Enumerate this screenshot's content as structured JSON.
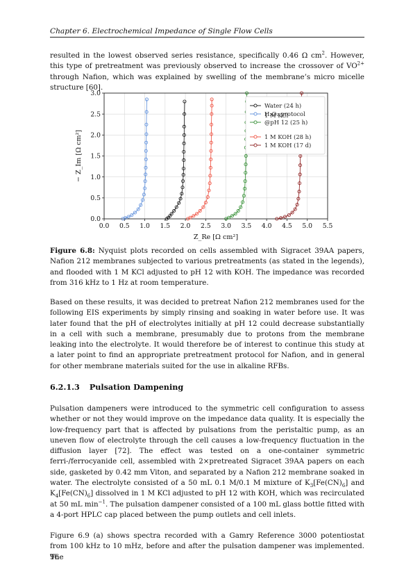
{
  "header": {
    "chapter": "Chapter 6. Electrochemical Impedance of Single Flow Cells"
  },
  "para1": {
    "a": "resulted in the lowest observed series resistance, specifically 0.46 Ω cm",
    "b": ". However, this type of pretreatment was previously observed to increase the crossover of VO",
    "c": " through Nafion, which was explained by swelling of the membrane’s micro micelle structure [60].",
    "sup_a": "2",
    "sup_b": "2+"
  },
  "figure": {
    "label": "Figure 6.8:",
    "caption": "Nyquist plots recorded on cells assembled with Sigracet 39AA papers, Nafion 212 membranes subjected to various pretreatments (as stated in the legends), and flooded with 1 M KCl adjusted to pH 12 with KOH. The impedance was recorded from 316 kHz to 1 Hz at room temperature."
  },
  "chart_data": {
    "type": "scatter",
    "title": "",
    "xlabel": "Z_Re [Ω cm²]",
    "ylabel": "− Z_Im [Ω cm²]",
    "xlim": [
      0.0,
      5.5
    ],
    "ylim": [
      0.0,
      3.0
    ],
    "x_ticks": [
      "0.0",
      "0.5",
      "1.0",
      "1.5",
      "2.0",
      "2.5",
      "3.0",
      "3.5",
      "4.0",
      "4.5",
      "5.0",
      "5.5"
    ],
    "y_ticks": [
      "0.0",
      "0.5",
      "1.0",
      "1.5",
      "2.0",
      "2.5",
      "3.0"
    ],
    "grid": true,
    "legend_position": "top-right",
    "series": [
      {
        "name": "Water (24 h)",
        "color": "#111111",
        "r": 1.54,
        "x": [
          1.54,
          1.58,
          1.62,
          1.66,
          1.72,
          1.78,
          1.84,
          1.88,
          1.91,
          1.93,
          1.94,
          1.95,
          1.955,
          1.96,
          1.96,
          1.965,
          1.97,
          1.97,
          1.975,
          1.98
        ],
        "y": [
          0.0,
          0.03,
          0.07,
          0.12,
          0.19,
          0.28,
          0.38,
          0.48,
          0.6,
          0.75,
          0.9,
          1.05,
          1.2,
          1.4,
          1.6,
          1.8,
          2.0,
          2.2,
          2.5,
          2.8
        ]
      },
      {
        "name": "H₂O₂ protocol",
        "color": "#5b8ddb",
        "r": 0.46,
        "x": [
          0.46,
          0.52,
          0.6,
          0.68,
          0.76,
          0.84,
          0.9,
          0.95,
          0.98,
          1.0,
          1.01,
          1.02,
          1.025,
          1.03,
          1.03,
          1.035,
          1.04,
          1.04,
          1.045,
          1.05
        ],
        "y": [
          0.0,
          0.02,
          0.05,
          0.09,
          0.15,
          0.23,
          0.33,
          0.45,
          0.58,
          0.73,
          0.9,
          1.06,
          1.22,
          1.42,
          1.62,
          1.82,
          2.02,
          2.25,
          2.55,
          2.85
        ]
      },
      {
        "name": "1 M KCl @pH 12 (25 h)",
        "color": "#2e8b2e",
        "r": 3.0,
        "x": [
          3.0,
          3.07,
          3.15,
          3.23,
          3.3,
          3.36,
          3.41,
          3.44,
          3.46,
          3.47,
          3.48,
          3.485,
          3.49,
          3.49,
          3.495,
          3.5,
          3.5,
          3.505,
          3.51,
          3.51
        ],
        "y": [
          0.0,
          0.03,
          0.07,
          0.12,
          0.19,
          0.28,
          0.4,
          0.55,
          0.72,
          0.9,
          1.1,
          1.3,
          1.5,
          1.7,
          1.9,
          2.1,
          2.3,
          2.55,
          2.8,
          3.0
        ]
      },
      {
        "name": "1 M KOH (28 h)",
        "color": "#ee4b3a",
        "r": 2.06,
        "x": [
          2.06,
          2.12,
          2.2,
          2.28,
          2.36,
          2.44,
          2.5,
          2.55,
          2.58,
          2.6,
          2.61,
          2.62,
          2.625,
          2.63,
          2.635,
          2.64,
          2.64,
          2.645,
          2.65,
          2.65
        ],
        "y": [
          0.0,
          0.03,
          0.07,
          0.12,
          0.19,
          0.28,
          0.39,
          0.52,
          0.68,
          0.85,
          1.03,
          1.22,
          1.42,
          1.62,
          1.82,
          2.02,
          2.25,
          2.5,
          2.7,
          2.85
        ]
      },
      {
        "name": "1 M KOH (17 d)",
        "color": "#8b1a1a",
        "r": 4.25,
        "x": [
          4.25,
          4.35,
          4.45,
          4.55,
          4.63,
          4.7,
          4.75,
          4.78,
          4.8,
          4.81,
          4.82,
          4.825,
          4.83,
          4.835,
          4.84,
          4.84,
          4.845,
          4.85,
          4.855,
          4.86
        ],
        "y": [
          0.0,
          0.02,
          0.05,
          0.09,
          0.15,
          0.23,
          0.34,
          0.48,
          0.65,
          0.85,
          1.06,
          1.28,
          1.5,
          1.72,
          1.95,
          2.18,
          2.4,
          2.62,
          2.82,
          3.0
        ]
      }
    ]
  },
  "para2": "Based on these results, it was decided to pretreat Nafion 212 membranes used for the following EIS experiments by simply rinsing and soaking in water before use. It was later found that the pH of electrolytes initially at pH 12 could decrease substantially in a cell with such a membrane, presumably due to protons from the membrane leaking into the electrolyte. It would therefore be of interest to continue this study at a later point to find an appropriate pretreatment protocol for Nafion, and in general for other membrane materials suited for the use in alkaline RFBs.",
  "section": {
    "number": "6.2.1.3",
    "title": "Pulsation Dampening"
  },
  "para3": {
    "a": "Pulsation dampeners were introduced to the symmetric cell configuration to assess whether or not they would improve on the impedance data quality. It is especially the low-frequency part that is affected by pulsations from the peristaltic pump, as an uneven flow of electrolyte through the cell causes a low-frequency fluctuation in the diffusion layer [72]. The effect was tested on a one-container symmetric ferri-/ferrocyanide cell, assembled with 2×pretreated Sigracet 39AA papers on each side, gasketed by 0.42 mm Viton, and separated by a Nafion 212 membrane soaked in water. The electrolyte consisted of a 50 mL 0.1 M/0.1 M mixture of K",
    "sub3": "3",
    "b": "[Fe(CN)",
    "sub6": "6",
    "c": "] and K",
    "sub4": "4",
    "d": "] dissolved in 1 M KCl adjusted to pH 12 with KOH, which was recirculated at 50 mL min",
    "sup_m1": "−1",
    "e": ". The pulsation dampener consisted of a 100 mL glass bottle fitted with a 4-port HPLC cap placed between the pump outlets and cell inlets."
  },
  "para4": "Figure 6.9 (a) shows spectra recorded with a Gamry Reference 3000 potentiostat from 100 kHz to 10 mHz, before and after the pulsation dampener was implemented. The",
  "page_number": "96"
}
